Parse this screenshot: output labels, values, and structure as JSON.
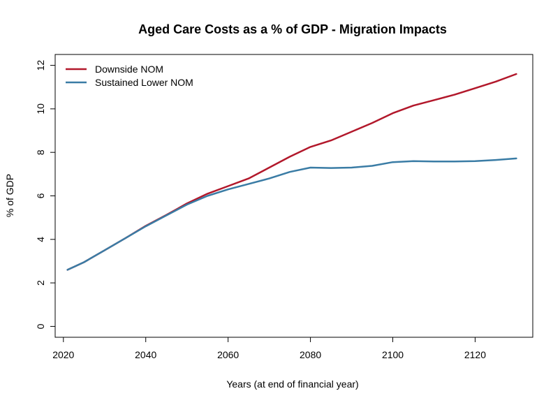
{
  "chart_data": {
    "type": "line",
    "title": "Aged Care Costs as a % of GDP - Migration Impacts",
    "xlabel": "Years (at end of financial year)",
    "ylabel": "% of GDP",
    "xlim": [
      2018,
      2134
    ],
    "ylim": [
      -0.5,
      12.5
    ],
    "xticks": [
      2020,
      2040,
      2060,
      2080,
      2100,
      2120
    ],
    "yticks": [
      0,
      2,
      4,
      6,
      8,
      10,
      12
    ],
    "grid": false,
    "legend_position": "top-left",
    "series": [
      {
        "name": "Downside NOM",
        "color": "#B2182B",
        "x": [
          2021,
          2025,
          2030,
          2035,
          2040,
          2045,
          2050,
          2055,
          2060,
          2065,
          2070,
          2075,
          2080,
          2085,
          2090,
          2095,
          2100,
          2105,
          2110,
          2115,
          2120,
          2125,
          2130
        ],
        "values": [
          2.6,
          2.95,
          3.5,
          4.05,
          4.62,
          5.12,
          5.65,
          6.1,
          6.45,
          6.8,
          7.3,
          7.8,
          8.25,
          8.55,
          8.95,
          9.35,
          9.8,
          10.15,
          10.4,
          10.65,
          10.95,
          11.25,
          11.6
        ]
      },
      {
        "name": "Sustained Lower NOM",
        "color": "#3A7CA5",
        "x": [
          2021,
          2025,
          2030,
          2035,
          2040,
          2045,
          2050,
          2055,
          2060,
          2065,
          2070,
          2075,
          2080,
          2085,
          2090,
          2095,
          2100,
          2105,
          2110,
          2115,
          2120,
          2125,
          2130
        ],
        "values": [
          2.6,
          2.95,
          3.5,
          4.05,
          4.6,
          5.1,
          5.6,
          6.0,
          6.3,
          6.55,
          6.8,
          7.1,
          7.3,
          7.28,
          7.3,
          7.38,
          7.55,
          7.6,
          7.58,
          7.58,
          7.6,
          7.65,
          7.72
        ]
      }
    ]
  }
}
